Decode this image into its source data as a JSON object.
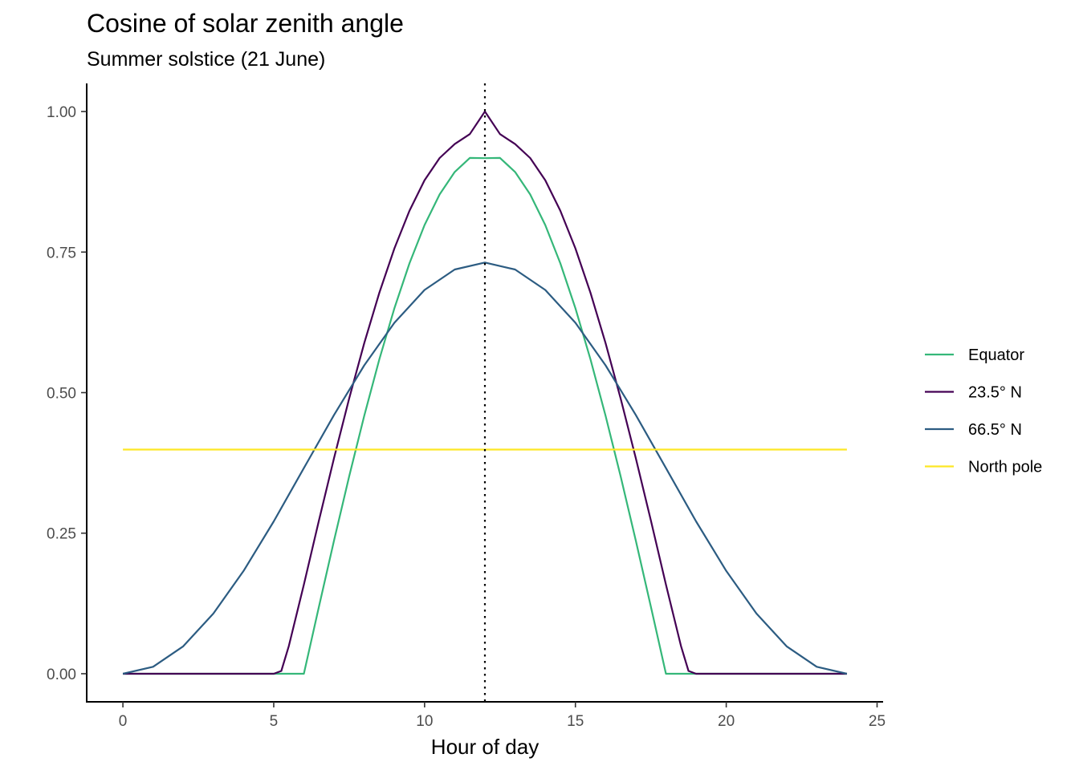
{
  "chart_data": {
    "type": "line",
    "title": "Cosine of solar zenith angle",
    "subtitle": "Summer solstice (21 June)",
    "xlabel": "Hour of day",
    "ylabel": "",
    "xlim": [
      -1.2,
      25.2
    ],
    "ylim": [
      -0.05,
      1.05
    ],
    "x_ticks": [
      0,
      5,
      10,
      15,
      20,
      25
    ],
    "x_tick_labels": [
      "0",
      "5",
      "10",
      "15",
      "20",
      "25"
    ],
    "y_ticks": [
      0,
      0.25,
      0.5,
      0.75,
      1.0
    ],
    "y_tick_labels": [
      "0.00",
      "0.25",
      "0.50",
      "0.75",
      "1.00"
    ],
    "grid": false,
    "legend_position": "right",
    "reference_line": {
      "x": 12,
      "style": "dotted",
      "color": "#000000"
    },
    "series": [
      {
        "name": "Equator",
        "color": "#35B779",
        "x": [
          0,
          6,
          6.5,
          7,
          7.5,
          8,
          8.5,
          9,
          9.5,
          10,
          10.5,
          11,
          11.5,
          12,
          12.5,
          13,
          13.5,
          14,
          14.5,
          15,
          15.5,
          16,
          16.5,
          17,
          17.5,
          18,
          24
        ],
        "y": [
          0,
          0,
          0.1195,
          0.2371,
          0.3509,
          0.4588,
          0.5592,
          0.6502,
          0.7303,
          0.7981,
          0.8525,
          0.8925,
          0.9174,
          0.9171,
          0.9174,
          0.8925,
          0.8525,
          0.7981,
          0.7303,
          0.6502,
          0.5592,
          0.4588,
          0.3509,
          0.2371,
          0.1195,
          0,
          0
        ]
      },
      {
        "name": "23.5° N",
        "color": "#440154",
        "x": [
          0,
          5,
          5.25,
          5.5,
          6,
          6.5,
          7,
          7.5,
          8,
          8.5,
          9,
          9.5,
          10,
          10.5,
          11,
          11.5,
          12,
          12.5,
          13,
          13.5,
          14,
          14.5,
          15,
          15.5,
          16,
          16.5,
          17,
          17.5,
          18,
          18.5,
          18.75,
          19,
          24
        ],
        "y": [
          0,
          0,
          0.005,
          0.0494,
          0.1585,
          0.2727,
          0.3837,
          0.4895,
          0.588,
          0.6776,
          0.7567,
          0.8237,
          0.8776,
          0.9173,
          0.9421,
          0.9599,
          1.0,
          0.9599,
          0.9421,
          0.9173,
          0.8776,
          0.8237,
          0.7567,
          0.6776,
          0.588,
          0.4895,
          0.3837,
          0.2727,
          0.1585,
          0.0494,
          0.005,
          0,
          0
        ]
      },
      {
        "name": "66.5° N",
        "color": "#2C5C82",
        "x": [
          0,
          1,
          2,
          3,
          4,
          5,
          6,
          7,
          8,
          9,
          10,
          11,
          12,
          13,
          14,
          15,
          16,
          17,
          18,
          19,
          20,
          21,
          22,
          23,
          24
        ],
        "y": [
          0,
          0.0124,
          0.0488,
          0.1071,
          0.1829,
          0.271,
          0.3657,
          0.4603,
          0.5485,
          0.6243,
          0.6826,
          0.719,
          0.7314,
          0.719,
          0.6826,
          0.6243,
          0.5485,
          0.4603,
          0.3657,
          0.271,
          0.1829,
          0.1071,
          0.0488,
          0.0124,
          0
        ]
      },
      {
        "name": "North pole",
        "color": "#FDE725",
        "x": [
          0,
          24
        ],
        "y": [
          0.3987,
          0.3987
        ]
      }
    ]
  }
}
